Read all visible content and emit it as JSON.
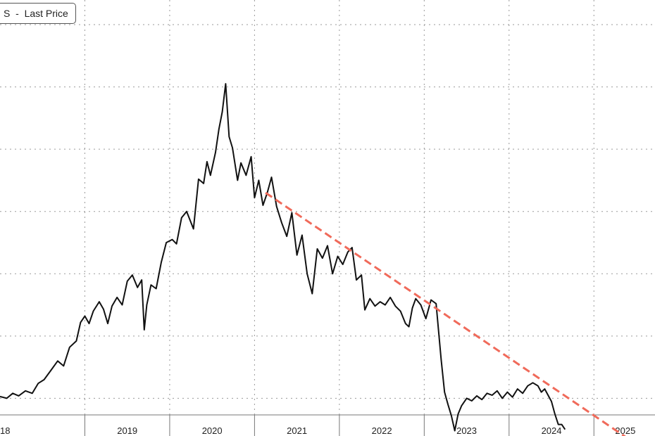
{
  "legend": {
    "series_suffix": "S",
    "separator": "-",
    "label": "Last Price"
  },
  "colors": {
    "series": "#111111",
    "trend": "#f06a5a",
    "grid": "#9a9a9a",
    "axis": "#777777"
  },
  "chart_data": {
    "type": "line",
    "title": "",
    "xlabel": "",
    "ylabel": "",
    "grid": true,
    "legend_position": "top-left",
    "x_tick_labels": [
      "18",
      "2019",
      "2020",
      "2021",
      "2022",
      "2023",
      "2024",
      "2025"
    ],
    "x_range": [
      2018.0,
      2025.72
    ],
    "y_range": [
      0,
      7
    ],
    "series": [
      {
        "name": "Last Price",
        "points": [
          [
            2018.0,
            1.03
          ],
          [
            2018.08,
            1.0
          ],
          [
            2018.15,
            1.08
          ],
          [
            2018.22,
            1.04
          ],
          [
            2018.3,
            1.12
          ],
          [
            2018.38,
            1.08
          ],
          [
            2018.45,
            1.24
          ],
          [
            2018.52,
            1.3
          ],
          [
            2018.6,
            1.45
          ],
          [
            2018.68,
            1.6
          ],
          [
            2018.75,
            1.52
          ],
          [
            2018.82,
            1.82
          ],
          [
            2018.9,
            1.92
          ],
          [
            2018.95,
            2.22
          ],
          [
            2019.0,
            2.32
          ],
          [
            2019.05,
            2.2
          ],
          [
            2019.1,
            2.4
          ],
          [
            2019.17,
            2.55
          ],
          [
            2019.22,
            2.43
          ],
          [
            2019.27,
            2.2
          ],
          [
            2019.32,
            2.48
          ],
          [
            2019.38,
            2.62
          ],
          [
            2019.44,
            2.5
          ],
          [
            2019.5,
            2.88
          ],
          [
            2019.56,
            2.98
          ],
          [
            2019.62,
            2.78
          ],
          [
            2019.67,
            2.9
          ],
          [
            2019.7,
            2.1
          ],
          [
            2019.73,
            2.5
          ],
          [
            2019.78,
            2.82
          ],
          [
            2019.84,
            2.76
          ],
          [
            2019.9,
            3.18
          ],
          [
            2019.96,
            3.5
          ],
          [
            2020.03,
            3.55
          ],
          [
            2020.08,
            3.48
          ],
          [
            2020.14,
            3.9
          ],
          [
            2020.2,
            4.0
          ],
          [
            2020.28,
            3.72
          ],
          [
            2020.34,
            4.52
          ],
          [
            2020.4,
            4.45
          ],
          [
            2020.44,
            4.8
          ],
          [
            2020.48,
            4.58
          ],
          [
            2020.54,
            4.95
          ],
          [
            2020.58,
            5.32
          ],
          [
            2020.62,
            5.6
          ],
          [
            2020.66,
            6.05
          ],
          [
            2020.7,
            5.2
          ],
          [
            2020.74,
            5.02
          ],
          [
            2020.8,
            4.5
          ],
          [
            2020.84,
            4.78
          ],
          [
            2020.9,
            4.58
          ],
          [
            2020.96,
            4.88
          ],
          [
            2021.0,
            4.22
          ],
          [
            2021.05,
            4.5
          ],
          [
            2021.1,
            4.1
          ],
          [
            2021.15,
            4.3
          ],
          [
            2021.2,
            4.55
          ],
          [
            2021.26,
            4.08
          ],
          [
            2021.32,
            3.82
          ],
          [
            2021.38,
            3.6
          ],
          [
            2021.44,
            3.98
          ],
          [
            2021.5,
            3.3
          ],
          [
            2021.56,
            3.62
          ],
          [
            2021.62,
            3.0
          ],
          [
            2021.68,
            2.68
          ],
          [
            2021.74,
            3.4
          ],
          [
            2021.8,
            3.25
          ],
          [
            2021.86,
            3.45
          ],
          [
            2021.92,
            3.0
          ],
          [
            2021.98,
            3.28
          ],
          [
            2022.04,
            3.15
          ],
          [
            2022.1,
            3.35
          ],
          [
            2022.15,
            3.42
          ],
          [
            2022.2,
            2.9
          ],
          [
            2022.26,
            2.98
          ],
          [
            2022.3,
            2.42
          ],
          [
            2022.36,
            2.6
          ],
          [
            2022.42,
            2.48
          ],
          [
            2022.48,
            2.55
          ],
          [
            2022.54,
            2.5
          ],
          [
            2022.6,
            2.62
          ],
          [
            2022.66,
            2.48
          ],
          [
            2022.72,
            2.4
          ],
          [
            2022.78,
            2.2
          ],
          [
            2022.82,
            2.15
          ],
          [
            2022.86,
            2.45
          ],
          [
            2022.9,
            2.6
          ],
          [
            2022.96,
            2.5
          ],
          [
            2023.02,
            2.28
          ],
          [
            2023.08,
            2.58
          ],
          [
            2023.14,
            2.52
          ],
          [
            2023.2,
            1.62
          ],
          [
            2023.24,
            1.1
          ],
          [
            2023.28,
            0.9
          ],
          [
            2023.32,
            0.72
          ],
          [
            2023.36,
            0.48
          ],
          [
            2023.4,
            0.75
          ],
          [
            2023.44,
            0.88
          ],
          [
            2023.5,
            1.0
          ],
          [
            2023.56,
            0.96
          ],
          [
            2023.62,
            1.04
          ],
          [
            2023.68,
            0.98
          ],
          [
            2023.74,
            1.08
          ],
          [
            2023.8,
            1.05
          ],
          [
            2023.86,
            1.12
          ],
          [
            2023.92,
            1.0
          ],
          [
            2023.98,
            1.1
          ],
          [
            2024.04,
            1.02
          ],
          [
            2024.1,
            1.15
          ],
          [
            2024.16,
            1.08
          ],
          [
            2024.22,
            1.2
          ],
          [
            2024.28,
            1.25
          ],
          [
            2024.34,
            1.2
          ],
          [
            2024.38,
            1.1
          ],
          [
            2024.42,
            1.15
          ],
          [
            2024.46,
            1.05
          ],
          [
            2024.5,
            0.95
          ],
          [
            2024.54,
            0.75
          ],
          [
            2024.58,
            0.58
          ],
          [
            2024.62,
            0.58
          ],
          [
            2024.66,
            0.5
          ]
        ]
      },
      {
        "name": "",
        "style": "dashed",
        "points": [
          [
            2021.13,
            4.3
          ],
          [
            2025.72,
            0.06
          ]
        ]
      }
    ]
  }
}
